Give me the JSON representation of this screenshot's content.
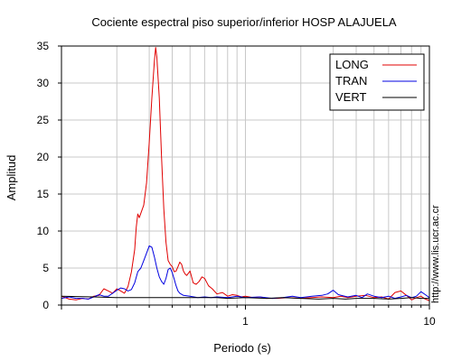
{
  "chart_data": {
    "type": "line",
    "title": "Cociente espectral piso superior/inferior  HOSP ALAJUELA",
    "xlabel": "Periodo (s)",
    "ylabel": "Amplitud",
    "x_scale": "log",
    "xlim": [
      0.1,
      10
    ],
    "ylim": [
      0,
      35
    ],
    "grid": true,
    "legend_position": "top-right",
    "x_tick_labels": [
      {
        "value": 1,
        "label": "1"
      },
      {
        "value": 10,
        "label": "10"
      }
    ],
    "y_tick_labels": [
      {
        "value": 0,
        "label": "0"
      },
      {
        "value": 5,
        "label": "5"
      },
      {
        "value": 10,
        "label": "10"
      },
      {
        "value": 15,
        "label": "15"
      },
      {
        "value": 20,
        "label": "20"
      },
      {
        "value": 25,
        "label": "25"
      },
      {
        "value": 30,
        "label": "30"
      },
      {
        "value": 35,
        "label": "35"
      }
    ],
    "series": [
      {
        "name": "LONG",
        "color": "#e00000",
        "points": [
          [
            0.1,
            1.2
          ],
          [
            0.11,
            0.8
          ],
          [
            0.12,
            0.7
          ],
          [
            0.13,
            0.9
          ],
          [
            0.14,
            0.8
          ],
          [
            0.15,
            1.2
          ],
          [
            0.16,
            1.3
          ],
          [
            0.17,
            2.2
          ],
          [
            0.18,
            1.9
          ],
          [
            0.19,
            1.6
          ],
          [
            0.2,
            2.2
          ],
          [
            0.21,
            1.9
          ],
          [
            0.22,
            1.6
          ],
          [
            0.23,
            2.5
          ],
          [
            0.24,
            4.5
          ],
          [
            0.25,
            7.5
          ],
          [
            0.255,
            10.5
          ],
          [
            0.26,
            12.3
          ],
          [
            0.265,
            11.8
          ],
          [
            0.27,
            12.4
          ],
          [
            0.28,
            13.5
          ],
          [
            0.29,
            16.5
          ],
          [
            0.3,
            22
          ],
          [
            0.31,
            28
          ],
          [
            0.32,
            33
          ],
          [
            0.325,
            34.8
          ],
          [
            0.33,
            33.5
          ],
          [
            0.34,
            28
          ],
          [
            0.35,
            20
          ],
          [
            0.36,
            13
          ],
          [
            0.37,
            8.5
          ],
          [
            0.38,
            6
          ],
          [
            0.39,
            5.5
          ],
          [
            0.4,
            5.2
          ],
          [
            0.41,
            4.5
          ],
          [
            0.42,
            4.6
          ],
          [
            0.43,
            5.2
          ],
          [
            0.44,
            5.8
          ],
          [
            0.45,
            5.5
          ],
          [
            0.46,
            4.6
          ],
          [
            0.47,
            4.2
          ],
          [
            0.48,
            4.0
          ],
          [
            0.5,
            4.6
          ],
          [
            0.52,
            3.0
          ],
          [
            0.54,
            2.8
          ],
          [
            0.56,
            3.2
          ],
          [
            0.58,
            3.8
          ],
          [
            0.6,
            3.6
          ],
          [
            0.63,
            2.6
          ],
          [
            0.66,
            2.2
          ],
          [
            0.7,
            1.5
          ],
          [
            0.75,
            1.7
          ],
          [
            0.8,
            1.2
          ],
          [
            0.85,
            1.4
          ],
          [
            0.9,
            1.3
          ],
          [
            0.95,
            1.1
          ],
          [
            1.0,
            1.2
          ],
          [
            1.1,
            1.0
          ],
          [
            1.2,
            1.1
          ],
          [
            1.3,
            0.9
          ],
          [
            1.5,
            0.9
          ],
          [
            1.7,
            1.0
          ],
          [
            2.0,
            0.9
          ],
          [
            2.3,
            1.0
          ],
          [
            2.6,
            1.1
          ],
          [
            3.0,
            1.0
          ],
          [
            3.3,
            1.2
          ],
          [
            3.6,
            1.0
          ],
          [
            4.0,
            1.2
          ],
          [
            4.5,
            1.3
          ],
          [
            5.0,
            1.0
          ],
          [
            5.5,
            1.1
          ],
          [
            6.0,
            0.8
          ],
          [
            6.5,
            1.7
          ],
          [
            7.0,
            1.9
          ],
          [
            7.5,
            1.3
          ],
          [
            8.0,
            0.7
          ],
          [
            8.5,
            1.0
          ],
          [
            9.0,
            1.2
          ],
          [
            9.5,
            0.8
          ],
          [
            10.0,
            0.6
          ]
        ]
      },
      {
        "name": "TRAN",
        "color": "#0000e0",
        "points": [
          [
            0.1,
            0.9
          ],
          [
            0.11,
            1.1
          ],
          [
            0.12,
            0.9
          ],
          [
            0.13,
            0.9
          ],
          [
            0.14,
            0.8
          ],
          [
            0.15,
            1.1
          ],
          [
            0.16,
            1.4
          ],
          [
            0.17,
            1.2
          ],
          [
            0.18,
            1.2
          ],
          [
            0.19,
            1.6
          ],
          [
            0.2,
            2.0
          ],
          [
            0.21,
            2.3
          ],
          [
            0.22,
            2.2
          ],
          [
            0.23,
            1.9
          ],
          [
            0.24,
            2.1
          ],
          [
            0.25,
            3.0
          ],
          [
            0.26,
            4.5
          ],
          [
            0.27,
            5.0
          ],
          [
            0.28,
            6.0
          ],
          [
            0.29,
            7.0
          ],
          [
            0.3,
            8.0
          ],
          [
            0.31,
            7.8
          ],
          [
            0.32,
            6.5
          ],
          [
            0.33,
            5.0
          ],
          [
            0.34,
            3.8
          ],
          [
            0.35,
            3.2
          ],
          [
            0.36,
            2.8
          ],
          [
            0.37,
            3.6
          ],
          [
            0.38,
            4.8
          ],
          [
            0.39,
            5.0
          ],
          [
            0.4,
            4.4
          ],
          [
            0.41,
            3.5
          ],
          [
            0.42,
            2.6
          ],
          [
            0.43,
            1.9
          ],
          [
            0.44,
            1.6
          ],
          [
            0.46,
            1.3
          ],
          [
            0.5,
            1.2
          ],
          [
            0.55,
            1.0
          ],
          [
            0.6,
            1.1
          ],
          [
            0.65,
            1.0
          ],
          [
            0.7,
            1.1
          ],
          [
            0.8,
            1.0
          ],
          [
            0.9,
            1.2
          ],
          [
            1.0,
            1.0
          ],
          [
            1.2,
            1.1
          ],
          [
            1.4,
            0.9
          ],
          [
            1.6,
            1.0
          ],
          [
            1.8,
            1.2
          ],
          [
            2.0,
            1.0
          ],
          [
            2.3,
            1.2
          ],
          [
            2.6,
            1.3
          ],
          [
            2.8,
            1.5
          ],
          [
            3.0,
            2.0
          ],
          [
            3.2,
            1.4
          ],
          [
            3.6,
            1.1
          ],
          [
            4.0,
            1.3
          ],
          [
            4.3,
            1.0
          ],
          [
            4.6,
            1.5
          ],
          [
            5.0,
            1.2
          ],
          [
            5.5,
            1.0
          ],
          [
            6.0,
            1.2
          ],
          [
            6.5,
            0.9
          ],
          [
            7.0,
            1.1
          ],
          [
            7.5,
            1.3
          ],
          [
            8.0,
            1.0
          ],
          [
            8.5,
            1.2
          ],
          [
            9.0,
            1.8
          ],
          [
            9.5,
            1.4
          ],
          [
            10.0,
            1.0
          ]
        ]
      },
      {
        "name": "VERT",
        "color": "#000000",
        "points": [
          [
            0.1,
            1.2
          ],
          [
            0.15,
            1.1
          ],
          [
            0.2,
            1.0
          ],
          [
            0.25,
            1.0
          ],
          [
            0.3,
            1.0
          ],
          [
            0.4,
            1.0
          ],
          [
            0.5,
            1.0
          ],
          [
            0.6,
            1.0
          ],
          [
            0.7,
            1.0
          ],
          [
            0.8,
            0.9
          ],
          [
            1.0,
            1.0
          ],
          [
            1.3,
            0.9
          ],
          [
            1.6,
            1.0
          ],
          [
            2.0,
            0.9
          ],
          [
            2.5,
            0.8
          ],
          [
            3.0,
            0.9
          ],
          [
            3.5,
            0.8
          ],
          [
            4.0,
            0.9
          ],
          [
            5.0,
            0.9
          ],
          [
            6.0,
            0.8
          ],
          [
            7.0,
            0.9
          ],
          [
            8.0,
            1.0
          ],
          [
            9.0,
            0.9
          ],
          [
            10.0,
            0.9
          ]
        ]
      }
    ]
  },
  "side_label": "http://www.lis.ucr.ac.cr"
}
